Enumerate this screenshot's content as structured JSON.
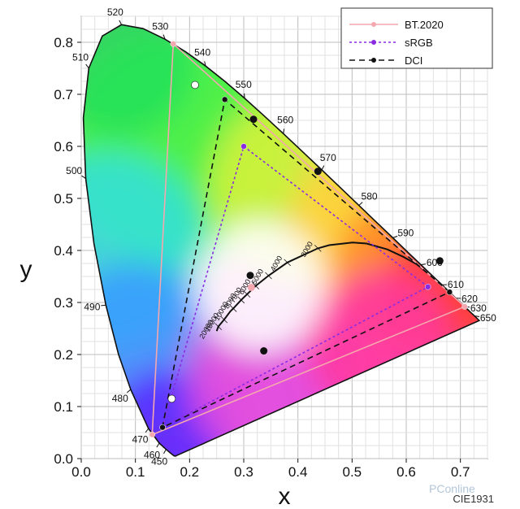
{
  "chart_data": {
    "type": "scatter",
    "title": "",
    "xlabel": "x",
    "ylabel": "y",
    "xlim": [
      0.0,
      0.75
    ],
    "ylim": [
      0.0,
      0.85
    ],
    "x_ticks": [
      "0.0",
      "0.1",
      "0.2",
      "0.3",
      "0.4",
      "0.5",
      "0.6",
      "0.7"
    ],
    "y_ticks": [
      "0.0",
      "0.1",
      "0.2",
      "0.3",
      "0.4",
      "0.5",
      "0.6",
      "0.7",
      "0.8"
    ],
    "grid": true,
    "legend_position": "top-right",
    "caption": "CIE1931",
    "watermark": "PConline",
    "series": [
      {
        "name": "BT.2020",
        "color": "#f4a7ae",
        "dash": "solid",
        "marker_color": "#f4a7ae",
        "points": [
          [
            0.708,
            0.292
          ],
          [
            0.17,
            0.797
          ],
          [
            0.131,
            0.046
          ]
        ]
      },
      {
        "name": "sRGB",
        "color": "#8a2be2",
        "dash": "dotted",
        "marker_color": "#8a2be2",
        "points": [
          [
            0.64,
            0.33
          ],
          [
            0.3,
            0.6
          ],
          [
            0.15,
            0.06
          ]
        ]
      },
      {
        "name": "DCI",
        "color": "#111111",
        "dash": "dashed",
        "marker_color": "#111111",
        "points": [
          [
            0.68,
            0.32
          ],
          [
            0.265,
            0.69
          ],
          [
            0.15,
            0.06
          ]
        ]
      }
    ],
    "extra_points": [
      {
        "x": 0.21,
        "y": 0.718,
        "fill": "#ffffff"
      },
      {
        "x": 0.167,
        "y": 0.115,
        "fill": "#ffffff"
      },
      {
        "x": 0.318,
        "y": 0.652,
        "fill": "#111111"
      },
      {
        "x": 0.437,
        "y": 0.552,
        "fill": "#111111"
      },
      {
        "x": 0.662,
        "y": 0.38,
        "fill": "#111111"
      },
      {
        "x": 0.337,
        "y": 0.207,
        "fill": "#111111"
      },
      {
        "x": 0.312,
        "y": 0.352,
        "fill": "#111111"
      },
      {
        "x": 0.314,
        "y": 0.329,
        "fill": "#f4a7ae"
      }
    ],
    "spectral_locus": [
      [
        0.1741,
        0.005
      ],
      [
        0.1738,
        0.0049
      ],
      [
        0.1714,
        0.0051
      ],
      [
        0.1666,
        0.0089
      ],
      [
        0.1566,
        0.0177
      ],
      [
        0.144,
        0.0297
      ],
      [
        0.1241,
        0.0578
      ],
      [
        0.0913,
        0.1327
      ],
      [
        0.0687,
        0.2007
      ],
      [
        0.0454,
        0.295
      ],
      [
        0.0235,
        0.4127
      ],
      [
        0.0082,
        0.5384
      ],
      [
        0.0039,
        0.6548
      ],
      [
        0.0139,
        0.7502
      ],
      [
        0.0389,
        0.812
      ],
      [
        0.0743,
        0.8338
      ],
      [
        0.1142,
        0.8262
      ],
      [
        0.1547,
        0.8059
      ],
      [
        0.1929,
        0.7816
      ],
      [
        0.2296,
        0.7543
      ],
      [
        0.2658,
        0.7243
      ],
      [
        0.3016,
        0.6923
      ],
      [
        0.3373,
        0.6589
      ],
      [
        0.3731,
        0.6245
      ],
      [
        0.4087,
        0.5896
      ],
      [
        0.4441,
        0.5547
      ],
      [
        0.4788,
        0.5202
      ],
      [
        0.5125,
        0.4866
      ],
      [
        0.5448,
        0.4544
      ],
      [
        0.5752,
        0.4242
      ],
      [
        0.6029,
        0.3965
      ],
      [
        0.627,
        0.3725
      ],
      [
        0.6482,
        0.3514
      ],
      [
        0.6658,
        0.334
      ],
      [
        0.6801,
        0.3197
      ],
      [
        0.6915,
        0.3083
      ],
      [
        0.7006,
        0.2993
      ],
      [
        0.7079,
        0.292
      ],
      [
        0.714,
        0.2859
      ],
      [
        0.719,
        0.2809
      ],
      [
        0.723,
        0.277
      ],
      [
        0.726,
        0.274
      ],
      [
        0.7347,
        0.2653
      ]
    ],
    "wavelength_labels": [
      {
        "nm": "450",
        "x": 0.1566,
        "y": 0.0177
      },
      {
        "nm": "460",
        "x": 0.144,
        "y": 0.0297
      },
      {
        "nm": "470",
        "x": 0.1241,
        "y": 0.0578
      },
      {
        "nm": "480",
        "x": 0.0913,
        "y": 0.1327
      },
      {
        "nm": "490",
        "x": 0.0454,
        "y": 0.295
      },
      {
        "nm": "500",
        "x": 0.0082,
        "y": 0.5384
      },
      {
        "nm": "510",
        "x": 0.0139,
        "y": 0.7502
      },
      {
        "nm": "520",
        "x": 0.0743,
        "y": 0.8338
      },
      {
        "nm": "530",
        "x": 0.1547,
        "y": 0.8059
      },
      {
        "nm": "540",
        "x": 0.2296,
        "y": 0.7543
      },
      {
        "nm": "550",
        "x": 0.3016,
        "y": 0.6923
      },
      {
        "nm": "560",
        "x": 0.3731,
        "y": 0.6245
      },
      {
        "nm": "570",
        "x": 0.4441,
        "y": 0.5547
      },
      {
        "nm": "580",
        "x": 0.5125,
        "y": 0.4866
      },
      {
        "nm": "590",
        "x": 0.5752,
        "y": 0.4242
      },
      {
        "nm": "600",
        "x": 0.627,
        "y": 0.3725
      },
      {
        "nm": "610",
        "x": 0.6658,
        "y": 0.334
      },
      {
        "nm": "620",
        "x": 0.6915,
        "y": 0.3083
      },
      {
        "nm": "630",
        "x": 0.7079,
        "y": 0.292
      },
      {
        "nm": "650",
        "x": 0.726,
        "y": 0.274
      }
    ],
    "planckian_locus": [
      [
        0.25,
        0.245
      ],
      [
        0.2531,
        0.2537
      ],
      [
        0.2637,
        0.267
      ],
      [
        0.2752,
        0.283
      ],
      [
        0.2807,
        0.2884
      ],
      [
        0.2952,
        0.3048
      ],
      [
        0.3221,
        0.3318
      ],
      [
        0.3457,
        0.3516
      ],
      [
        0.3805,
        0.3768
      ],
      [
        0.4369,
        0.4041
      ],
      [
        0.4578,
        0.4101
      ],
      [
        0.5008,
        0.4152
      ],
      [
        0.5267,
        0.4133
      ],
      [
        0.565,
        0.402
      ],
      [
        0.594,
        0.388
      ],
      [
        0.62,
        0.373
      ],
      [
        0.64,
        0.356
      ]
    ],
    "cct_labels": [
      {
        "text": "3000",
        "x": 0.4369,
        "y": 0.4041
      },
      {
        "text": "4000",
        "x": 0.3805,
        "y": 0.3768
      },
      {
        "text": "5000",
        "x": 0.3457,
        "y": 0.3516
      },
      {
        "text": "6000",
        "x": 0.3221,
        "y": 0.3318
      },
      {
        "text": "7000",
        "x": 0.306,
        "y": 0.316
      },
      {
        "text": "8000",
        "x": 0.2952,
        "y": 0.3048
      },
      {
        "text": "10000",
        "x": 0.2807,
        "y": 0.2884
      },
      {
        "text": "15000",
        "x": 0.2637,
        "y": 0.267
      },
      {
        "text": "20000",
        "x": 0.2531,
        "y": 0.2537
      }
    ]
  }
}
